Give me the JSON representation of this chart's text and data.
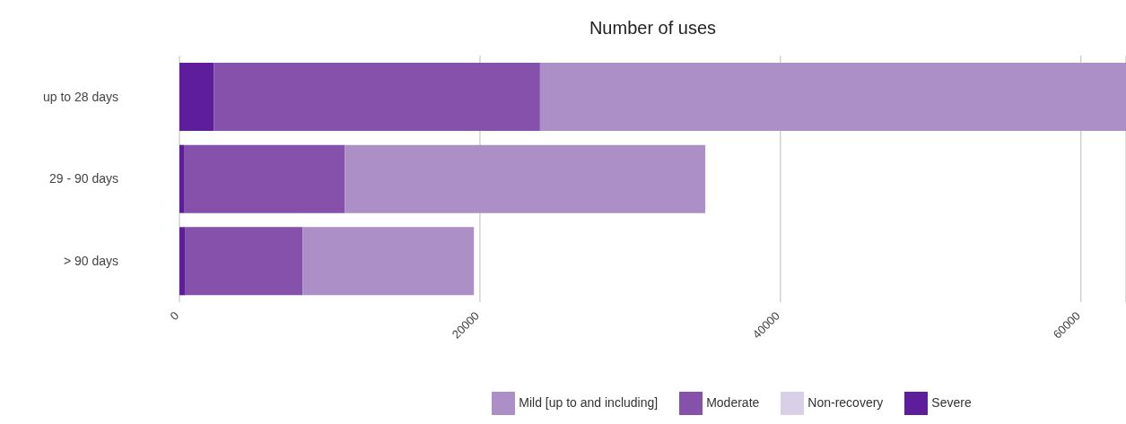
{
  "chart_data": {
    "type": "bar",
    "orientation": "horizontal",
    "stacked": true,
    "title": "Number of uses",
    "categories": [
      "up to 28 days",
      "29 - 90 days",
      "> 90 days"
    ],
    "series": [
      {
        "name": "Severe",
        "color": "#5e1d9b",
        "values": [
          2300,
          300,
          400
        ]
      },
      {
        "name": "Moderate",
        "color": "#8551aa",
        "values": [
          21700,
          10700,
          7800
        ]
      },
      {
        "name": "Mild [up to and including]",
        "color": "#ad8fc8",
        "values": [
          39000,
          24000,
          11400
        ]
      },
      {
        "name": "Non-recovery",
        "color": "#d9cfe6",
        "values": [
          null,
          null,
          null
        ]
      }
    ],
    "xlim": [
      0,
      63000
    ],
    "xticks": [
      0,
      20000,
      40000,
      60000
    ],
    "grid": "x",
    "legend": "bottom"
  }
}
